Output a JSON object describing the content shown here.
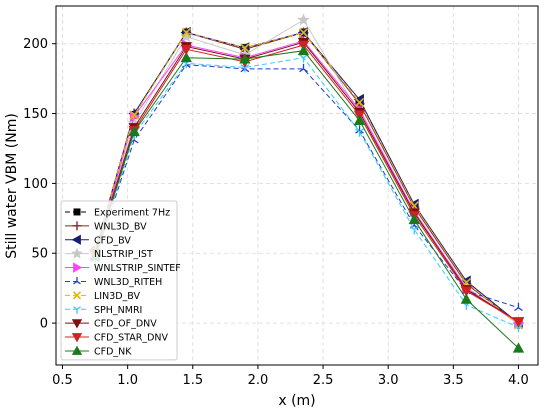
{
  "chart_data": {
    "type": "line",
    "xlabel": "x (m)",
    "ylabel": "Still water VBM (Nm)",
    "xlim": [
      0.45,
      4.15
    ],
    "ylim": [
      -30,
      227
    ],
    "xticks": [
      "0.5",
      "1.0",
      "1.5",
      "2.0",
      "2.5",
      "3.0",
      "3.5",
      "4.0"
    ],
    "yticks": [
      "0",
      "50",
      "100",
      "150",
      "200"
    ],
    "grid": true,
    "legend_position": "lower-left",
    "series": [
      {
        "name": "Experiment 7Hz",
        "color": "#000000",
        "marker": "square",
        "dash": "5,3",
        "x": [
          0.75,
          1.05,
          1.45,
          1.9,
          2.35,
          2.78,
          3.2,
          3.6,
          4.0
        ],
        "y": [
          52,
          149,
          208,
          197,
          208,
          158,
          84,
          29,
          -1
        ]
      },
      {
        "name": "WNL3D_BV",
        "color": "#8b2525",
        "marker": "plus",
        "dash": "",
        "x": [
          0.75,
          1.05,
          1.45,
          1.9,
          2.35,
          2.78,
          3.2,
          3.6,
          4.0
        ],
        "y": [
          51,
          150,
          208,
          196,
          208,
          157,
          83,
          28,
          0
        ]
      },
      {
        "name": "CFD_BV",
        "color": "#1a1a7a",
        "marker": "triangle-left",
        "dash": "",
        "x": [
          0.75,
          1.05,
          1.45,
          1.9,
          2.35,
          2.78,
          3.2,
          3.6,
          4.0
        ],
        "y": [
          52,
          150,
          208,
          197,
          208,
          160,
          85,
          30,
          0
        ]
      },
      {
        "name": "NLSTRIP_IST",
        "color": "#c8c8c8",
        "marker": "star",
        "dash": "",
        "x": [
          0.75,
          1.05,
          1.45,
          1.9,
          2.35,
          2.78,
          3.2,
          3.6,
          4.0
        ],
        "y": [
          50,
          143,
          205,
          192,
          217,
          150,
          78,
          26,
          -1
        ]
      },
      {
        "name": "WNLSTRIP_SINTEF",
        "color": "#ff44ff",
        "marker": "triangle-right",
        "dash": "",
        "x": [
          0.75,
          1.05,
          1.45,
          1.9,
          2.35,
          2.78,
          3.2,
          3.6,
          4.0
        ],
        "y": [
          48,
          148,
          199,
          190,
          202,
          153,
          80,
          25,
          0
        ]
      },
      {
        "name": "WNL3D_RITEH",
        "color": "#1f3fcc",
        "marker": "tri",
        "dash": "5,3",
        "x": [
          0.75,
          1.05,
          1.45,
          1.9,
          2.35,
          2.78,
          3.2,
          3.6,
          4.0
        ],
        "y": [
          46,
          131,
          185,
          182,
          182,
          138,
          70,
          23,
          11
        ]
      },
      {
        "name": "LIN3D_BV",
        "color": "#e0b800",
        "marker": "x",
        "dash": "5,3",
        "x": [
          0.75,
          1.05,
          1.45,
          1.9,
          2.35,
          2.78,
          3.2,
          3.6,
          4.0
        ],
        "y": [
          52,
          149,
          208,
          197,
          208,
          158,
          84,
          29,
          -1
        ]
      },
      {
        "name": "SPH_NMRI",
        "color": "#33ccff",
        "marker": "tri-down",
        "dash": "5,3",
        "x": [
          0.75,
          1.05,
          1.45,
          1.9,
          2.35,
          2.78,
          3.2,
          3.6,
          4.0
        ],
        "y": [
          45,
          135,
          186,
          183,
          190,
          137,
          67,
          13,
          -3
        ]
      },
      {
        "name": "CFD_OF_DNV",
        "color": "#7a1010",
        "marker": "triangle-down",
        "dash": "",
        "x": [
          0.75,
          1.05,
          1.45,
          1.9,
          2.35,
          2.78,
          3.2,
          3.6,
          4.0
        ],
        "y": [
          50,
          140,
          198,
          189,
          201,
          151,
          79,
          24,
          1
        ]
      },
      {
        "name": "CFD_STAR_DNV",
        "color": "#d42020",
        "marker": "triangle-down",
        "dash": "",
        "x": [
          0.75,
          1.05,
          1.45,
          1.9,
          2.35,
          2.78,
          3.2,
          3.6,
          4.0
        ],
        "y": [
          49,
          138,
          196,
          187,
          199,
          149,
          77,
          23,
          1
        ]
      },
      {
        "name": "CFD_NK",
        "color": "#1a7a1a",
        "marker": "triangle-up",
        "dash": "",
        "x": [
          0.75,
          1.05,
          1.45,
          1.9,
          2.35,
          2.78,
          3.2,
          3.6,
          4.0
        ],
        "y": [
          48,
          137,
          190,
          189,
          195,
          145,
          74,
          17,
          -18
        ]
      }
    ]
  }
}
